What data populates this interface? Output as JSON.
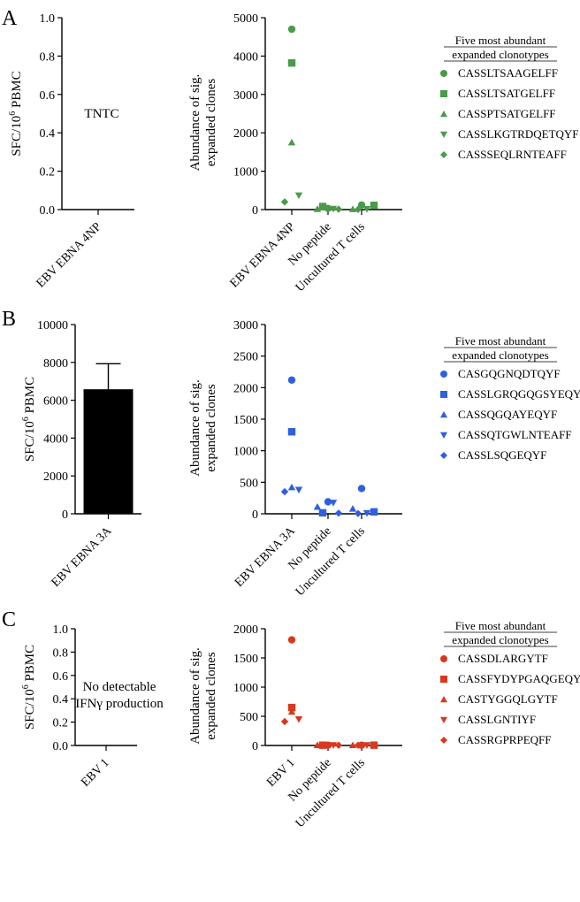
{
  "figure": {
    "panels": [
      {
        "letter": "A",
        "left_ylabel": "SFC/10^6 PBMC",
        "left_ylabel_main": "SFC/10",
        "left_ylabel_sup": "6",
        "left_ylabel_tail": " PBMC",
        "left_note": [
          "TNTC"
        ],
        "right_ylabel_lines": [
          "Abundance of sig.",
          "expanded clones"
        ],
        "legend_title_lines": [
          "Five most abundant",
          "expanded clonotypes"
        ],
        "color": "#4a9a4a"
      },
      {
        "letter": "B",
        "left_ylabel": "SFC/10^6 PBMC",
        "left_ylabel_main": "SFC/10",
        "left_ylabel_sup": "6",
        "left_ylabel_tail": " PBMC",
        "left_note": [],
        "right_ylabel_lines": [
          "Abundance of sig.",
          "expanded clones"
        ],
        "legend_title_lines": [
          "Five most abundant",
          "expanded clonotypes"
        ],
        "color": "#2f5fe0"
      },
      {
        "letter": "C",
        "left_ylabel": "SFC/10^6 PBMC",
        "left_ylabel_main": "SFC/10",
        "left_ylabel_sup": "6",
        "left_ylabel_tail": " PBMC",
        "left_note": [
          "No detectable",
          "IFNγ production"
        ],
        "right_ylabel_lines": [
          "Abundance of sig.",
          "expanded clones"
        ],
        "legend_title_lines": [
          "Five most abundant",
          "expanded clonotypes"
        ],
        "color": "#d8391e"
      }
    ]
  },
  "chart_data": [
    {
      "panel": "A",
      "type": "bar",
      "categories": [
        "EBV EBNA 4NP"
      ],
      "values": [
        null
      ],
      "error": [
        null
      ],
      "annotation": "TNTC",
      "ylabel": "SFC/10^6 PBMC",
      "ylim": [
        0,
        1.0
      ],
      "yticks": [
        "0.0",
        "0.2",
        "0.4",
        "0.6",
        "0.8",
        "1.0"
      ]
    },
    {
      "panel": "A",
      "type": "scatter",
      "categories": [
        "EBV EBNA 4NP",
        "No peptide",
        "Uncultured T cells"
      ],
      "ylabel": "Abundance of sig. expanded clones",
      "ylim": [
        0,
        5000
      ],
      "yticks": [
        "0",
        "1000",
        "2000",
        "3000",
        "4000",
        "5000"
      ],
      "series": [
        {
          "name": "CASSLTSAAGELFF",
          "marker": "circle",
          "values": [
            4700,
            30,
            120
          ]
        },
        {
          "name": "CASSLTSATGELFF",
          "marker": "square",
          "values": [
            3820,
            80,
            110
          ]
        },
        {
          "name": "CASSPTSATGELFF",
          "marker": "triangle-up",
          "values": [
            1750,
            15,
            10
          ]
        },
        {
          "name": "CASSLKGTRDQETQYF",
          "marker": "triangle-down",
          "values": [
            370,
            20,
            15
          ]
        },
        {
          "name": "CASSSEQLRNTEAFF",
          "marker": "diamond",
          "values": [
            200,
            10,
            5
          ]
        }
      ]
    },
    {
      "panel": "B",
      "type": "bar",
      "categories": [
        "EBV EBNA 3A"
      ],
      "values": [
        6580
      ],
      "error": [
        1350
      ],
      "ylabel": "SFC/10^6 PBMC",
      "ylim": [
        0,
        10000
      ],
      "yticks": [
        "0",
        "2000",
        "4000",
        "6000",
        "8000",
        "10000"
      ]
    },
    {
      "panel": "B",
      "type": "scatter",
      "categories": [
        "EBV EBNA 3A",
        "No peptide",
        "Uncultured T cells"
      ],
      "ylabel": "Abundance of sig. expanded clones",
      "ylim": [
        0,
        3000
      ],
      "yticks": [
        "0",
        "500",
        "1000",
        "1500",
        "2000",
        "2500",
        "3000"
      ],
      "series": [
        {
          "name": "CASGQGNQDTQYF",
          "marker": "circle",
          "values": [
            2120,
            190,
            400
          ]
        },
        {
          "name": "CASSLGRQGQGSYEQYF",
          "marker": "square",
          "values": [
            1300,
            15,
            30
          ]
        },
        {
          "name": "CASSQGQAYEQYF",
          "marker": "triangle-up",
          "values": [
            420,
            110,
            80
          ]
        },
        {
          "name": "CASSQTGWLNTEAFF",
          "marker": "triangle-down",
          "values": [
            380,
            175,
            10
          ]
        },
        {
          "name": "CASSLSQGEQYF",
          "marker": "diamond",
          "values": [
            350,
            10,
            5
          ]
        }
      ]
    },
    {
      "panel": "C",
      "type": "bar",
      "categories": [
        "EBV 1"
      ],
      "values": [
        0
      ],
      "error": [
        0
      ],
      "annotation": "No detectable IFNγ production",
      "ylabel": "SFC/10^6 PBMC",
      "ylim": [
        0,
        1.0
      ],
      "yticks": [
        "0.0",
        "0.2",
        "0.4",
        "0.6",
        "0.8",
        "1.0"
      ]
    },
    {
      "panel": "C",
      "type": "scatter",
      "categories": [
        "EBV 1",
        "No peptide",
        "Uncultured T cells"
      ],
      "ylabel": "Abundance of sig. expanded clones",
      "ylim": [
        0,
        2000
      ],
      "yticks": [
        "0",
        "500",
        "1000",
        "1500",
        "2000"
      ],
      "series": [
        {
          "name": "CASSDLARGYTF",
          "marker": "circle",
          "values": [
            1810,
            5,
            5
          ]
        },
        {
          "name": "CASSFYDYPGAQGEQYF",
          "marker": "square",
          "values": [
            650,
            5,
            5
          ]
        },
        {
          "name": "CASTYGGQLGYTF",
          "marker": "triangle-up",
          "values": [
            580,
            5,
            5
          ]
        },
        {
          "name": "CASSLGNTIYF",
          "marker": "triangle-down",
          "values": [
            450,
            5,
            5
          ]
        },
        {
          "name": "CASSRGPRPEQFF",
          "marker": "diamond",
          "values": [
            410,
            5,
            5
          ]
        }
      ]
    }
  ]
}
